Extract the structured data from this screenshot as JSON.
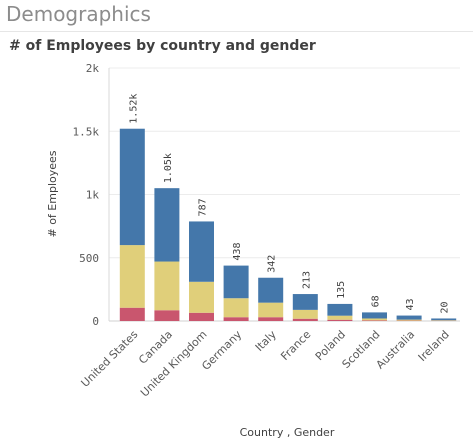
{
  "page": {
    "title": "Demographics"
  },
  "chart_data": {
    "type": "bar",
    "stacked": true,
    "title": "# of Employees by country and gender",
    "xlabel": "Country , Gender",
    "ylabel": "# of Employees",
    "ylim": [
      0,
      2000
    ],
    "yticks": [
      "0",
      "500",
      "1k",
      "1.5k",
      "2k"
    ],
    "grid": true,
    "categories": [
      "United States",
      "Canada",
      "United Kingdom",
      "Germany",
      "Italy",
      "France",
      "Poland",
      "Scotland",
      "Australia",
      "Ireland"
    ],
    "totals_labels": [
      "1.52k",
      "1.05k",
      "787",
      "438",
      "342",
      "213",
      "135",
      "68",
      "43",
      "20"
    ],
    "series": [
      {
        "color": "#c9566e",
        "values": [
          105,
          85,
          65,
          30,
          30,
          18,
          10,
          5,
          3,
          2
        ]
      },
      {
        "color": "#e0cf7a",
        "values": [
          495,
          385,
          245,
          150,
          115,
          70,
          32,
          15,
          8,
          4
        ]
      },
      {
        "color": "#4477aa",
        "values": [
          920,
          580,
          477,
          258,
          197,
          125,
          93,
          48,
          32,
          14
        ]
      }
    ]
  }
}
